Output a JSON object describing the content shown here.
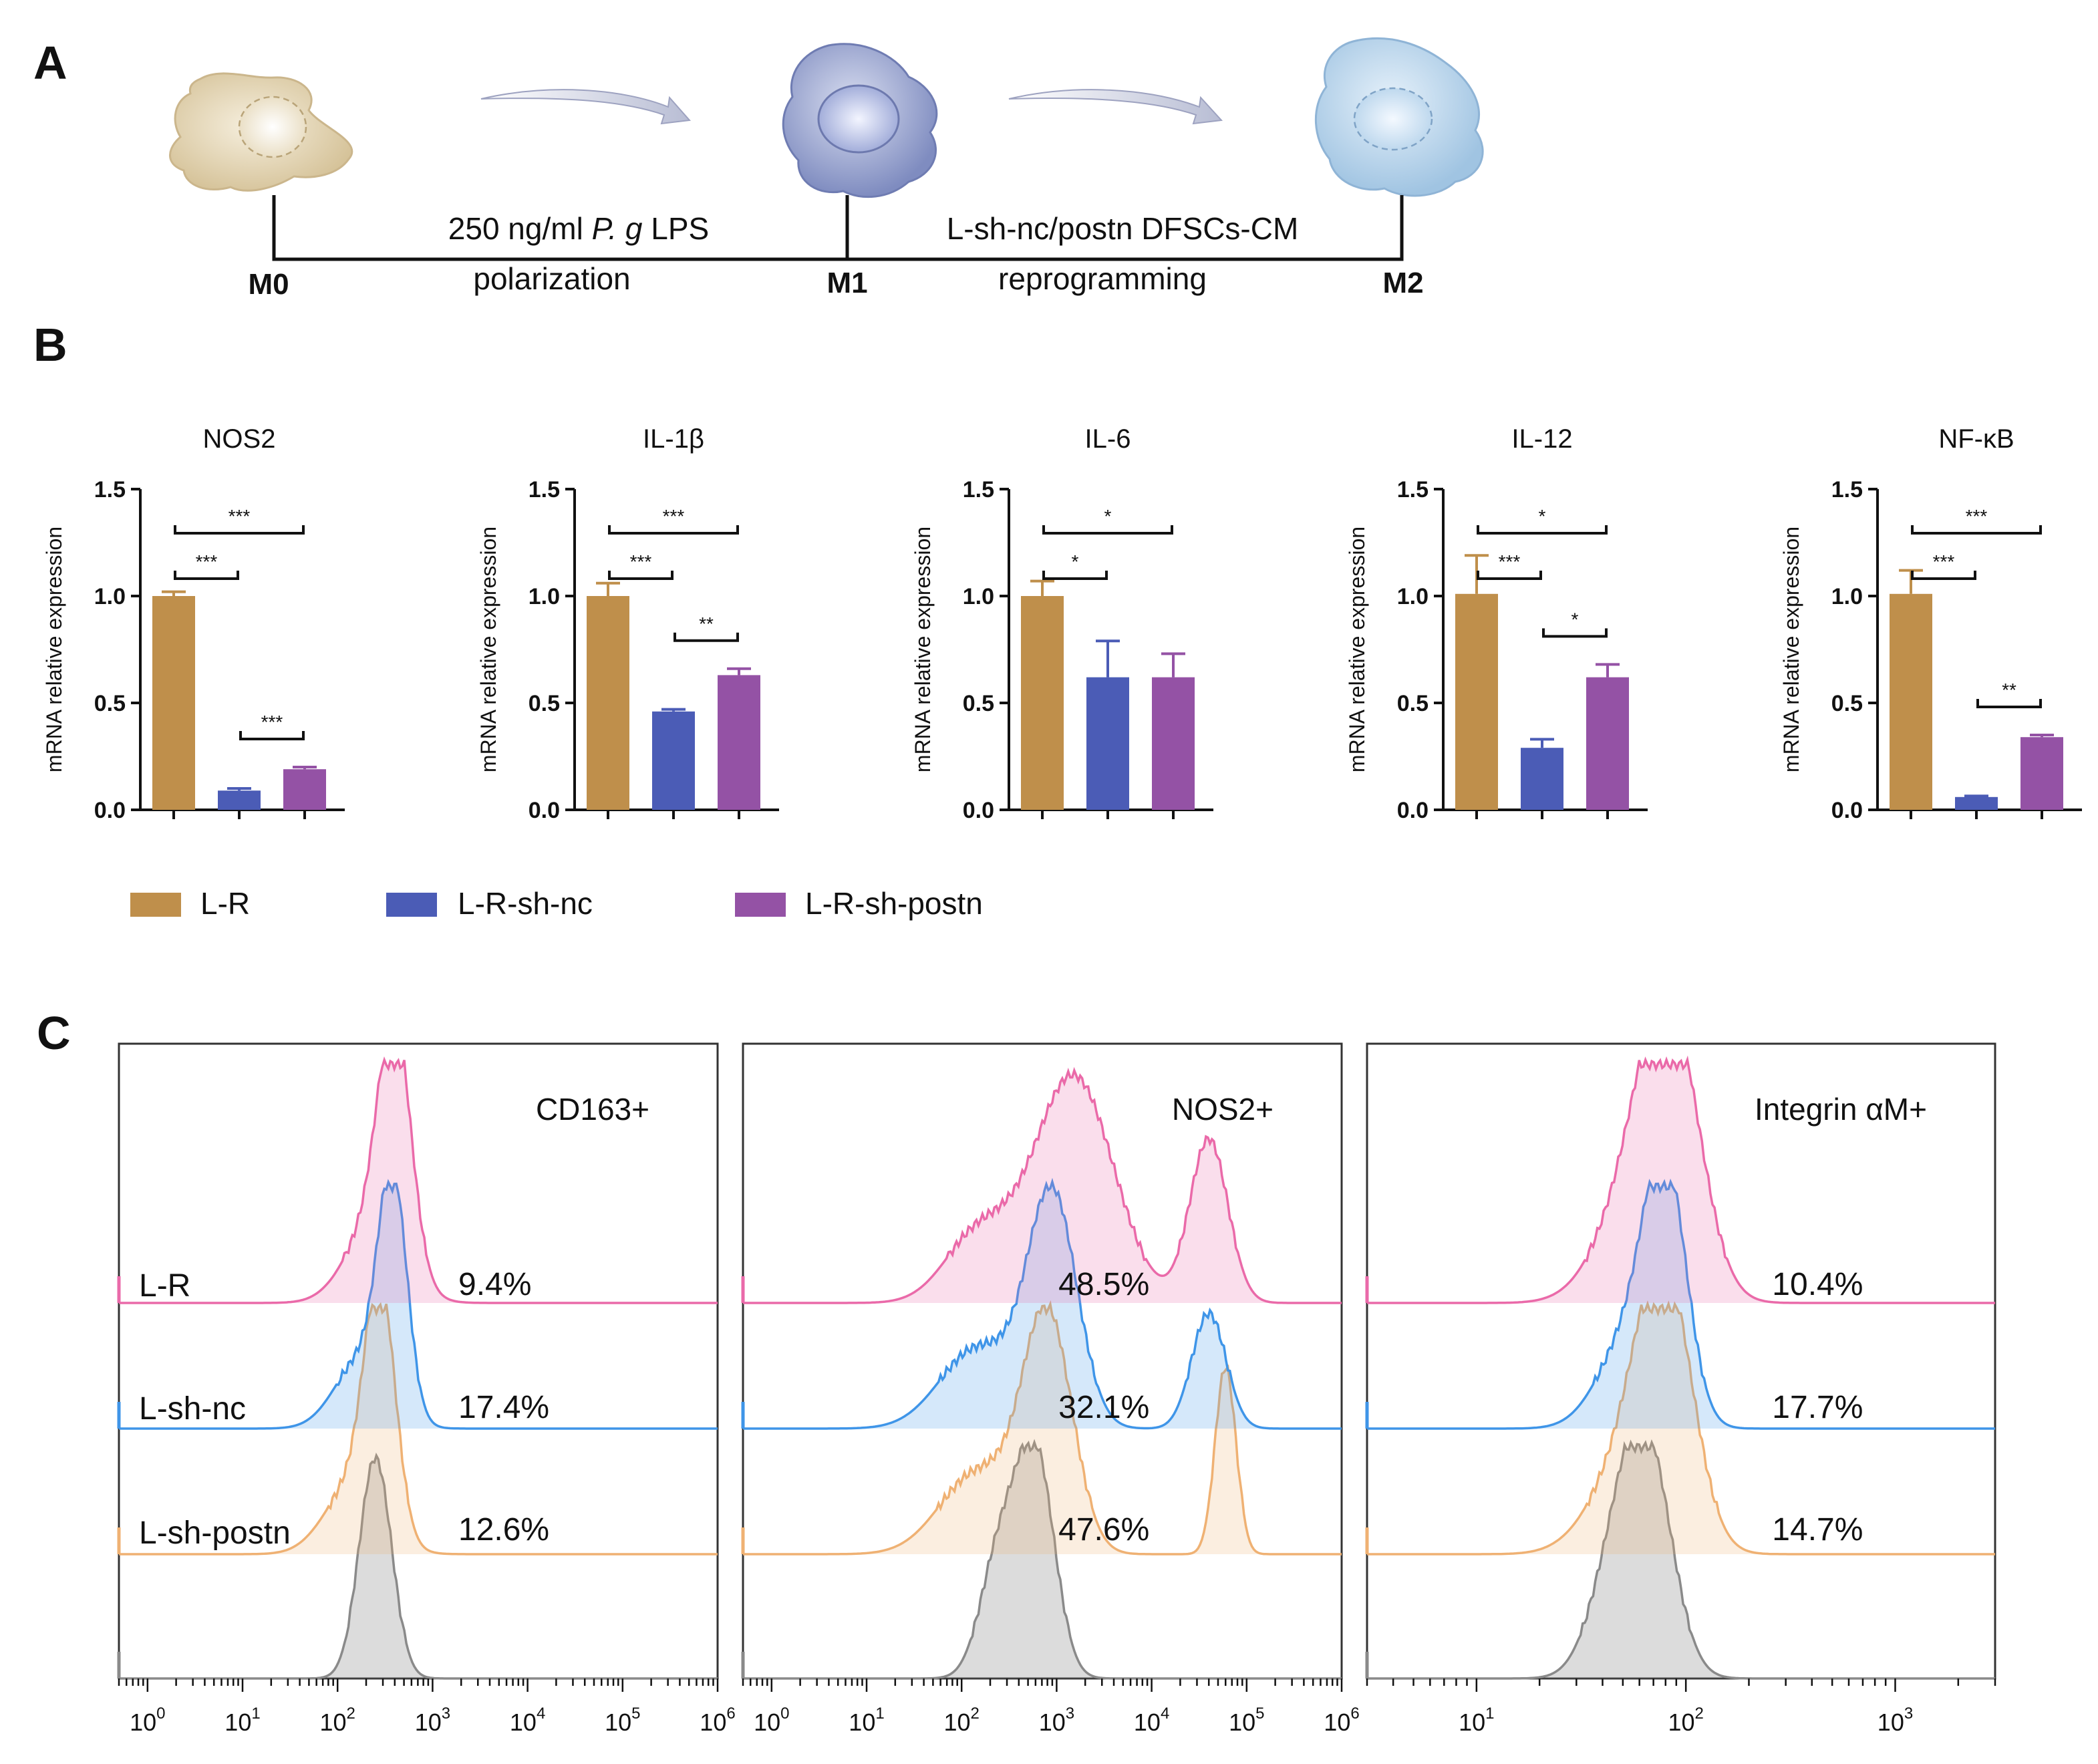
{
  "panels": {
    "a": "A",
    "b": "B",
    "c": "C"
  },
  "schematic": {
    "stage_m0": "M0",
    "stage_m1": "M1",
    "stage_m2": "M2",
    "step1_conc": "250 ng/ml ",
    "step1_species": "P. g",
    "step1_lps": " LPS",
    "step1_label": "polarization",
    "step2_text": "L-sh-nc/postn DFSCs-CM",
    "step2_label": "reprogramming",
    "colors": {
      "m0": "#d9c9a6",
      "m1": "#8f9cc8",
      "m2": "#a9cbe6"
    }
  },
  "bar_legend": [
    {
      "label": "L-R",
      "color": "#bf8f4b"
    },
    {
      "label": "L-R-sh-nc",
      "color": "#4b5cb6"
    },
    {
      "label": "L-R-sh-postn",
      "color": "#9452a5"
    }
  ],
  "flow": {
    "group_labels": [
      "L-R",
      "L-sh-nc",
      "L-sh-postn"
    ],
    "colors": {
      "L-R": "#ea6aa9",
      "L-sh-nc": "#3f95e8",
      "L-sh-postn": "#efb173",
      "control": "#8a8a8a"
    }
  },
  "chart_data": [
    {
      "type": "bar",
      "title": "NOS2",
      "ylabel": "mRNA relative expression",
      "ylim": [
        0,
        1.5
      ],
      "yticks": [
        "0.0",
        "0.5",
        "1.0",
        "1.5"
      ],
      "categories": [
        "L-R",
        "L-R-sh-nc",
        "L-R-sh-postn"
      ],
      "values": [
        1.0,
        0.09,
        0.19
      ],
      "errors": [
        0.02,
        0.01,
        0.01
      ],
      "significance": [
        {
          "pair": [
            0,
            2
          ],
          "label": "***"
        },
        {
          "pair": [
            0,
            1
          ],
          "label": "***"
        },
        {
          "pair": [
            1,
            2
          ],
          "label": "***"
        }
      ]
    },
    {
      "type": "bar",
      "title": "IL-1β",
      "ylabel": "mRNA relative expression",
      "ylim": [
        0,
        1.5
      ],
      "yticks": [
        "0.0",
        "0.5",
        "1.0",
        "1.5"
      ],
      "categories": [
        "L-R",
        "L-R-sh-nc",
        "L-R-sh-postn"
      ],
      "values": [
        1.0,
        0.46,
        0.63
      ],
      "errors": [
        0.06,
        0.01,
        0.03
      ],
      "significance": [
        {
          "pair": [
            0,
            2
          ],
          "label": "***"
        },
        {
          "pair": [
            0,
            1
          ],
          "label": "***"
        },
        {
          "pair": [
            1,
            2
          ],
          "label": "**"
        }
      ]
    },
    {
      "type": "bar",
      "title": "IL-6",
      "ylabel": "mRNA relative expression",
      "ylim": [
        0,
        1.5
      ],
      "yticks": [
        "0.0",
        "0.5",
        "1.0",
        "1.5"
      ],
      "categories": [
        "L-R",
        "L-R-sh-nc",
        "L-R-sh-postn"
      ],
      "values": [
        1.0,
        0.62,
        0.62
      ],
      "errors": [
        0.07,
        0.17,
        0.11
      ],
      "significance": [
        {
          "pair": [
            0,
            2
          ],
          "label": "*"
        },
        {
          "pair": [
            0,
            1
          ],
          "label": "*"
        }
      ]
    },
    {
      "type": "bar",
      "title": "IL-12",
      "ylabel": "mRNA relative expression",
      "ylim": [
        0,
        1.5
      ],
      "yticks": [
        "0.0",
        "0.5",
        "1.0",
        "1.5"
      ],
      "categories": [
        "L-R",
        "L-R-sh-nc",
        "L-R-sh-postn"
      ],
      "values": [
        1.01,
        0.29,
        0.62
      ],
      "errors": [
        0.18,
        0.04,
        0.06
      ],
      "significance": [
        {
          "pair": [
            0,
            2
          ],
          "label": "*"
        },
        {
          "pair": [
            0,
            1
          ],
          "label": "***"
        },
        {
          "pair": [
            1,
            2
          ],
          "label": "*"
        }
      ]
    },
    {
      "type": "bar",
      "title": "NF-κB",
      "ylabel": "mRNA relative expression",
      "ylim": [
        0,
        1.5
      ],
      "yticks": [
        "0.0",
        "0.5",
        "1.0",
        "1.5"
      ],
      "categories": [
        "L-R",
        "L-R-sh-nc",
        "L-R-sh-postn"
      ],
      "values": [
        1.01,
        0.06,
        0.34
      ],
      "errors": [
        0.11,
        0.005,
        0.01
      ],
      "significance": [
        {
          "pair": [
            0,
            2
          ],
          "label": "***"
        },
        {
          "pair": [
            0,
            1
          ],
          "label": "***"
        },
        {
          "pair": [
            1,
            2
          ],
          "label": "**"
        }
      ]
    },
    {
      "type": "histogram",
      "title": "CD163+",
      "x_scale": "log",
      "xlim": [
        0.5,
        1000000
      ],
      "x_tick_labels": [
        {
          "base": "10",
          "exp": "0"
        },
        {
          "base": "10",
          "exp": "1"
        },
        {
          "base": "10",
          "exp": "2"
        },
        {
          "base": "10",
          "exp": "3"
        },
        {
          "base": "10",
          "exp": "4"
        },
        {
          "base": "10",
          "exp": "5"
        },
        {
          "base": "10",
          "exp": "6"
        }
      ],
      "percentages": [
        "9.4%",
        "17.4%",
        "12.6%"
      ],
      "series": [
        {
          "name": "L-R",
          "peaks": [
            [
              400,
              1.0,
              0.17
            ],
            [
              250,
              0.35,
              0.3
            ]
          ]
        },
        {
          "name": "L-sh-nc",
          "peaks": [
            [
              380,
              1.0,
              0.15
            ],
            [
              180,
              0.3,
              0.28
            ]
          ]
        },
        {
          "name": "L-sh-postn",
          "peaks": [
            [
              280,
              1.0,
              0.16
            ],
            [
              150,
              0.3,
              0.3
            ]
          ]
        },
        {
          "name": "control",
          "peaks": [
            [
              250,
              1.0,
              0.17
            ]
          ]
        }
      ]
    },
    {
      "type": "histogram",
      "title": "NOS2+",
      "x_scale": "log",
      "xlim": [
        0.5,
        1000000
      ],
      "x_tick_labels": [
        {
          "base": "10",
          "exp": "0"
        },
        {
          "base": "10",
          "exp": "1"
        },
        {
          "base": "10",
          "exp": "2"
        },
        {
          "base": "10",
          "exp": "3"
        },
        {
          "base": "10",
          "exp": "4"
        },
        {
          "base": "10",
          "exp": "5"
        },
        {
          "base": "10",
          "exp": "6"
        }
      ],
      "percentages": [
        "48.5%",
        "32.1%",
        "47.6%"
      ],
      "series": [
        {
          "name": "L-R",
          "peaks": [
            [
              1500,
              1.0,
              0.42
            ],
            [
              40000,
              0.72,
              0.2
            ],
            [
              150,
              0.3,
              0.35
            ]
          ]
        },
        {
          "name": "L-sh-nc",
          "peaks": [
            [
              900,
              1.0,
              0.26
            ],
            [
              40000,
              0.5,
              0.18
            ],
            [
              150,
              0.35,
              0.4
            ]
          ]
        },
        {
          "name": "L-sh-postn",
          "peaks": [
            [
              800,
              1.0,
              0.26
            ],
            [
              60000,
              0.8,
              0.11
            ],
            [
              150,
              0.35,
              0.4
            ]
          ]
        },
        {
          "name": "control",
          "peaks": [
            [
              600,
              1.0,
              0.2
            ],
            [
              250,
              0.55,
              0.2
            ]
          ]
        }
      ]
    },
    {
      "type": "histogram",
      "title": "Integrin αM+",
      "x_scale": "log",
      "xlim": [
        3,
        3000
      ],
      "x_tick_labels": [
        {
          "base": "10",
          "exp": "1"
        },
        {
          "base": "10",
          "exp": "2"
        },
        {
          "base": "10",
          "exp": "3"
        }
      ],
      "percentages": [
        "10.4%",
        "17.7%",
        "14.7%"
      ],
      "series": [
        {
          "name": "L-R",
          "peaks": [
            [
              85,
              1.0,
              0.14
            ],
            [
              60,
              0.5,
              0.18
            ]
          ]
        },
        {
          "name": "L-sh-nc",
          "peaks": [
            [
              80,
              1.0,
              0.1
            ],
            [
              55,
              0.4,
              0.15
            ]
          ]
        },
        {
          "name": "L-sh-postn",
          "peaks": [
            [
              80,
              1.0,
              0.13
            ],
            [
              55,
              0.4,
              0.18
            ]
          ]
        },
        {
          "name": "control",
          "peaks": [
            [
              65,
              1.0,
              0.12
            ],
            [
              45,
              0.4,
              0.12
            ]
          ]
        }
      ]
    }
  ]
}
